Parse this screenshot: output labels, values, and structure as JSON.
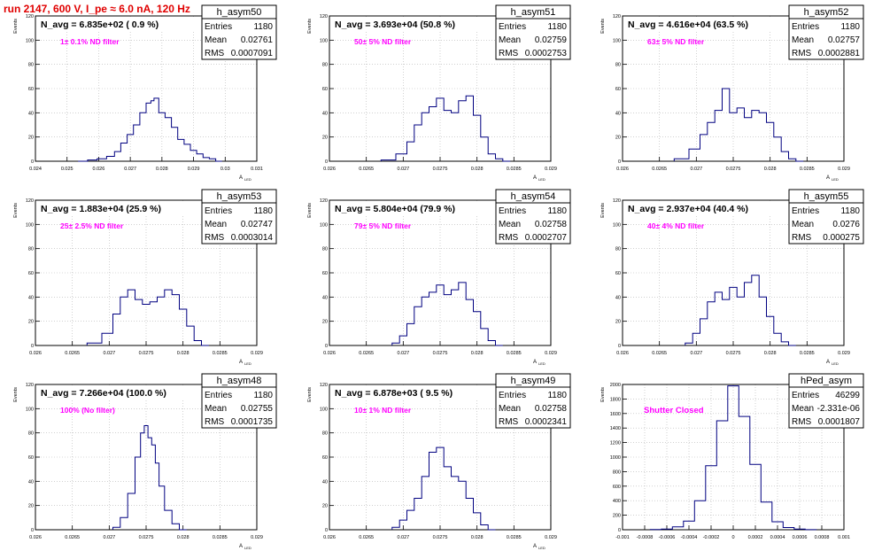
{
  "header": {
    "run_title": "run 2147,   600 V, I_pe ≈ 6.0 nA, 120 Hz"
  },
  "colors": {
    "title": "#e00000",
    "hist_line": "#000080",
    "annotation": "#ff00ff",
    "grid": "#b4b4b4"
  },
  "chart_data": [
    {
      "type": "histogram",
      "panel": "top-left",
      "hist_name": "h_asym50",
      "stats": [
        [
          "Entries",
          "1180"
        ],
        [
          "Mean",
          "0.02761"
        ],
        [
          "RMS",
          "0.0007091"
        ]
      ],
      "n_avg_label": "N_avg = 6.835e+02 ( 0.9 %)",
      "filter_label": "1± 0.1% ND filter",
      "ylabel": "Events",
      "xlabel": "A",
      "xlabel_sub": "LED",
      "xlim": [
        0.024,
        0.031
      ],
      "ylim": [
        0,
        120
      ],
      "xticks": [
        "0.024",
        "0.025",
        "0.026",
        "0.027",
        "0.028",
        "0.029",
        "0.03",
        "0.031"
      ],
      "yticks": [
        "0",
        "20",
        "40",
        "60",
        "80",
        "100",
        "120"
      ],
      "grid": true,
      "x": [
        0.0255,
        0.0258,
        0.0261,
        0.0264,
        0.0266,
        0.0268,
        0.027,
        0.0272,
        0.0274,
        0.0276,
        0.0277,
        0.0278,
        0.028,
        0.0282,
        0.0284,
        0.0286,
        0.0288,
        0.029,
        0.0292,
        0.0294,
        0.0296,
        0.0298
      ],
      "values": [
        0,
        1,
        2,
        4,
        8,
        15,
        22,
        30,
        40,
        48,
        50,
        52,
        40,
        36,
        28,
        18,
        14,
        9,
        6,
        3,
        2,
        0
      ]
    },
    {
      "type": "histogram",
      "panel": "top-middle",
      "hist_name": "h_asym51",
      "stats": [
        [
          "Entries",
          "1180"
        ],
        [
          "Mean",
          "0.02759"
        ],
        [
          "RMS",
          "0.0002753"
        ]
      ],
      "n_avg_label": "N_avg = 3.693e+04 (50.8 %)",
      "filter_label": "50± 5% ND filter",
      "ylabel": "Events",
      "xlabel": "A",
      "xlabel_sub": "LED",
      "xlim": [
        0.026,
        0.029
      ],
      "ylim": [
        0,
        120
      ],
      "xticks": [
        "0.026",
        "0.0265",
        "0.027",
        "0.0275",
        "0.028",
        "0.0285",
        "0.029"
      ],
      "yticks": [
        "0",
        "20",
        "40",
        "60",
        "80",
        "100",
        "120"
      ],
      "grid": true,
      "x": [
        0.0268,
        0.027,
        0.0271,
        0.0272,
        0.0273,
        0.0274,
        0.0275,
        0.0276,
        0.0277,
        0.0278,
        0.0279,
        0.028,
        0.0281,
        0.0282,
        0.0283,
        0.0284
      ],
      "values": [
        1,
        6,
        16,
        30,
        40,
        45,
        52,
        42,
        40,
        50,
        54,
        38,
        20,
        6,
        2,
        0
      ]
    },
    {
      "type": "histogram",
      "panel": "top-right",
      "hist_name": "h_asym52",
      "stats": [
        [
          "Entries",
          "1180"
        ],
        [
          "Mean",
          "0.02757"
        ],
        [
          "RMS",
          "0.0002881"
        ]
      ],
      "n_avg_label": "N_avg = 4.616e+04 (63.5 %)",
      "filter_label": "63± 5% ND filter",
      "ylabel": "Events",
      "xlabel": "A",
      "xlabel_sub": "LED",
      "xlim": [
        0.026,
        0.029
      ],
      "ylim": [
        0,
        120
      ],
      "xticks": [
        "0.026",
        "0.0265",
        "0.027",
        "0.0275",
        "0.028",
        "0.0285",
        "0.029"
      ],
      "yticks": [
        "0",
        "20",
        "40",
        "60",
        "80",
        "100",
        "120"
      ],
      "grid": true,
      "x": [
        0.0268,
        0.027,
        0.0271,
        0.0272,
        0.0273,
        0.0274,
        0.0275,
        0.0276,
        0.0277,
        0.0278,
        0.0279,
        0.028,
        0.0281,
        0.0282,
        0.0283,
        0.0284
      ],
      "values": [
        2,
        10,
        22,
        32,
        42,
        60,
        40,
        44,
        36,
        42,
        40,
        32,
        20,
        8,
        2,
        0
      ]
    },
    {
      "type": "histogram",
      "panel": "middle-left",
      "hist_name": "h_asym53",
      "stats": [
        [
          "Entries",
          "1180"
        ],
        [
          "Mean",
          "0.02747"
        ],
        [
          "RMS",
          "0.0003014"
        ]
      ],
      "n_avg_label": "N_avg = 1.883e+04 (25.9 %)",
      "filter_label": "25± 2.5% ND filter",
      "ylabel": "Events",
      "xlabel": "A",
      "xlabel_sub": "LED",
      "xlim": [
        0.026,
        0.029
      ],
      "ylim": [
        0,
        120
      ],
      "xticks": [
        "0.026",
        "0.0265",
        "0.027",
        "0.0275",
        "0.028",
        "0.0285",
        "0.029"
      ],
      "yticks": [
        "0",
        "20",
        "40",
        "60",
        "80",
        "100",
        "120"
      ],
      "grid": true,
      "x": [
        0.0268,
        0.027,
        0.0271,
        0.0272,
        0.0273,
        0.0274,
        0.0275,
        0.0276,
        0.0277,
        0.0278,
        0.0279,
        0.028,
        0.0281,
        0.0282,
        0.0283
      ],
      "values": [
        2,
        10,
        26,
        40,
        46,
        38,
        34,
        36,
        40,
        46,
        42,
        30,
        16,
        4,
        0
      ]
    },
    {
      "type": "histogram",
      "panel": "middle-middle",
      "hist_name": "h_asym54",
      "stats": [
        [
          "Entries",
          "1180"
        ],
        [
          "Mean",
          "0.02758"
        ],
        [
          "RMS",
          "0.0002707"
        ]
      ],
      "n_avg_label": "N_avg = 5.804e+04 (79.9 %)",
      "filter_label": "79± 5% ND filter",
      "ylabel": "Events",
      "xlabel": "A",
      "xlabel_sub": "LED",
      "xlim": [
        0.026,
        0.029
      ],
      "ylim": [
        0,
        120
      ],
      "xticks": [
        "0.026",
        "0.0265",
        "0.027",
        "0.0275",
        "0.028",
        "0.0285",
        "0.029"
      ],
      "yticks": [
        "0",
        "20",
        "40",
        "60",
        "80",
        "100",
        "120"
      ],
      "grid": true,
      "x": [
        0.0269,
        0.027,
        0.0271,
        0.0272,
        0.0273,
        0.0274,
        0.0275,
        0.0276,
        0.0277,
        0.0278,
        0.0279,
        0.028,
        0.0281,
        0.0282,
        0.0283
      ],
      "values": [
        2,
        8,
        18,
        32,
        40,
        44,
        50,
        42,
        46,
        52,
        38,
        28,
        14,
        4,
        0
      ]
    },
    {
      "type": "histogram",
      "panel": "middle-right",
      "hist_name": "h_asym55",
      "stats": [
        [
          "Entries",
          "1180"
        ],
        [
          "Mean",
          "0.0276"
        ],
        [
          "RMS",
          "0.000275"
        ]
      ],
      "n_avg_label": "N_avg = 2.937e+04 (40.4 %)",
      "filter_label": "40± 4% ND filter",
      "ylabel": "Events",
      "xlabel": "A",
      "xlabel_sub": "LED",
      "xlim": [
        0.026,
        0.029
      ],
      "ylim": [
        0,
        120
      ],
      "xticks": [
        "0.026",
        "0.0265",
        "0.027",
        "0.0275",
        "0.028",
        "0.0285",
        "0.029"
      ],
      "yticks": [
        "0",
        "20",
        "40",
        "60",
        "80",
        "100",
        "120"
      ],
      "grid": true,
      "x": [
        0.0269,
        0.027,
        0.0271,
        0.0272,
        0.0273,
        0.0274,
        0.0275,
        0.0276,
        0.0277,
        0.0278,
        0.0279,
        0.028,
        0.0281,
        0.0282,
        0.0283
      ],
      "values": [
        2,
        10,
        22,
        36,
        44,
        38,
        48,
        40,
        52,
        58,
        40,
        24,
        10,
        3,
        0
      ]
    },
    {
      "type": "histogram",
      "panel": "bottom-left",
      "hist_name": "h_asym48",
      "stats": [
        [
          "Entries",
          "1180"
        ],
        [
          "Mean",
          "0.02755"
        ],
        [
          "RMS",
          "0.0001735"
        ]
      ],
      "n_avg_label": "N_avg = 7.266e+04 (100.0 %)",
      "filter_label": "100% (No filter)",
      "ylabel": "Events",
      "xlabel": "A",
      "xlabel_sub": "LED",
      "xlim": [
        0.026,
        0.029
      ],
      "ylim": [
        0,
        120
      ],
      "xticks": [
        "0.026",
        "0.0265",
        "0.027",
        "0.0275",
        "0.028",
        "0.0285",
        "0.029"
      ],
      "yticks": [
        "0",
        "20",
        "40",
        "60",
        "80",
        "100",
        "120"
      ],
      "grid": true,
      "x": [
        0.0271,
        0.0272,
        0.0273,
        0.0274,
        0.02745,
        0.0275,
        0.02755,
        0.0276,
        0.02765,
        0.0277,
        0.0278,
        0.0279,
        0.028
      ],
      "values": [
        2,
        10,
        30,
        60,
        80,
        86,
        76,
        70,
        55,
        36,
        16,
        5,
        0
      ]
    },
    {
      "type": "histogram",
      "panel": "bottom-middle",
      "hist_name": "h_asym49",
      "stats": [
        [
          "Entries",
          "1180"
        ],
        [
          "Mean",
          "0.02758"
        ],
        [
          "RMS",
          "0.0002341"
        ]
      ],
      "n_avg_label": "N_avg = 6.878e+03 ( 9.5 %)",
      "filter_label": "10± 1% ND filter",
      "ylabel": "Events",
      "xlabel": "A",
      "xlabel_sub": "LED",
      "xlim": [
        0.026,
        0.029
      ],
      "ylim": [
        0,
        120
      ],
      "xticks": [
        "0.026",
        "0.0265",
        "0.027",
        "0.0275",
        "0.028",
        "0.0285",
        "0.029"
      ],
      "yticks": [
        "0",
        "20",
        "40",
        "60",
        "80",
        "100",
        "120"
      ],
      "grid": true,
      "x": [
        0.0269,
        0.027,
        0.0271,
        0.0272,
        0.0273,
        0.0274,
        0.0275,
        0.0276,
        0.0277,
        0.0278,
        0.0279,
        0.028,
        0.0281,
        0.0282
      ],
      "values": [
        2,
        8,
        16,
        26,
        44,
        64,
        68,
        52,
        44,
        40,
        26,
        14,
        4,
        0
      ]
    },
    {
      "type": "histogram",
      "panel": "bottom-right",
      "hist_name": "hPed_asym",
      "stats": [
        [
          "Entries",
          "46299"
        ],
        [
          "Mean",
          "-2.331e-06"
        ],
        [
          "RMS",
          "0.0001807"
        ]
      ],
      "n_avg_label": "",
      "filter_label": "Shutter Closed",
      "ylabel": "Events",
      "xlabel": "",
      "xlabel_sub": "",
      "xlim": [
        -0.001,
        0.001
      ],
      "ylim": [
        0,
        2000
      ],
      "xticks": [
        "-0.001",
        "-0.0008",
        "-0.0006",
        "-0.0004",
        "-0.0002",
        "0",
        "0.0002",
        "0.0004",
        "0.0006",
        "0.0008",
        "0.001"
      ],
      "yticks": [
        "0",
        "200",
        "400",
        "600",
        "800",
        "1000",
        "1200",
        "1400",
        "1600",
        "1800",
        "2000"
      ],
      "grid": true,
      "x": [
        -0.0007,
        -0.0006,
        -0.0005,
        -0.0004,
        -0.0003,
        -0.0002,
        -0.0001,
        0,
        0.0001,
        0.0002,
        0.0003,
        0.0004,
        0.0005,
        0.0006,
        0.0007
      ],
      "values": [
        2,
        10,
        40,
        120,
        400,
        880,
        1500,
        1980,
        1560,
        900,
        380,
        110,
        30,
        8,
        1
      ]
    }
  ]
}
